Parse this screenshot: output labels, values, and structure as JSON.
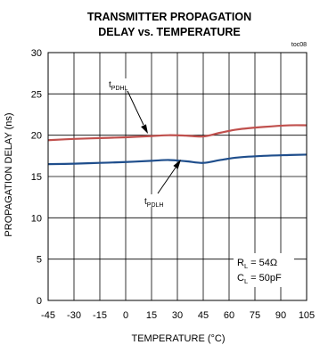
{
  "chart_data": {
    "type": "line",
    "title": [
      "TRANSMITTER PROPAGATION",
      "DELAY vs. TEMPERATURE"
    ],
    "figure_id": "toc08",
    "xlabel": "TEMPERATURE (°C)",
    "ylabel": "PROPAGATION DELAY (ns)",
    "xlim": [
      -45,
      105
    ],
    "ylim": [
      0,
      30
    ],
    "xticks": [
      "-45",
      "-30",
      "-15",
      "0",
      "15",
      "30",
      "45",
      "60",
      "75",
      "90",
      "105"
    ],
    "yticks": [
      "0",
      "5",
      "10",
      "15",
      "20",
      "25",
      "30"
    ],
    "grid": true,
    "series": [
      {
        "name_main": "t",
        "name_sub": "PDHL",
        "color": "#c0504d",
        "x": [
          -45,
          -30,
          -15,
          0,
          15,
          25,
          35,
          45,
          55,
          65,
          80,
          95,
          105
        ],
        "y": [
          19.4,
          19.55,
          19.65,
          19.75,
          19.9,
          20.0,
          19.95,
          19.85,
          20.3,
          20.7,
          21.0,
          21.2,
          21.2
        ]
      },
      {
        "name_main": "t",
        "name_sub": "PDLH",
        "color": "#1f4e8c",
        "x": [
          -45,
          -30,
          -15,
          0,
          15,
          25,
          35,
          45,
          55,
          65,
          80,
          95,
          105
        ],
        "y": [
          16.5,
          16.55,
          16.65,
          16.75,
          16.9,
          17.0,
          16.85,
          16.65,
          17.0,
          17.3,
          17.5,
          17.6,
          17.65
        ]
      }
    ],
    "conditions": [
      {
        "main": "R",
        "sub": "L",
        "value": " = 54Ω"
      },
      {
        "main": "C",
        "sub": "L",
        "value": " = 50pF"
      }
    ]
  }
}
